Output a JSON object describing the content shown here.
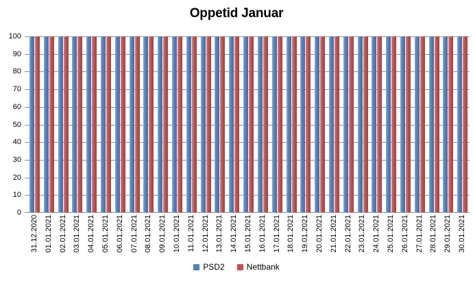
{
  "chart_data": {
    "type": "bar",
    "title": "Oppetid Januar",
    "categories": [
      "31.12.2020",
      "01.01.2021",
      "02.01.2021",
      "03.01.2021",
      "04.01.2021",
      "05.01.2021",
      "06.01.2021",
      "07.01.2021",
      "08.01.2021",
      "09.01.2021",
      "10.01.2021",
      "11.01.2021",
      "12.01.2021",
      "13.01.2021",
      "14.01.2021",
      "15.01.2021",
      "16.01.2021",
      "17.01.2021",
      "18.01.2021",
      "19.01.2021",
      "20.01.2021",
      "21.01.2021",
      "22.01.2021",
      "23.01.2021",
      "24.01.2021",
      "25.01.2021",
      "26.01.2021",
      "27.01.2021",
      "28.01.2021",
      "29.01.2021",
      "30.01.2021"
    ],
    "series": [
      {
        "name": "PSD2",
        "color": "#4F81BD",
        "values": [
          100,
          100,
          100,
          100,
          100,
          100,
          100,
          100,
          100,
          100,
          100,
          100,
          100,
          100,
          100,
          100,
          100,
          100,
          100,
          100,
          100,
          100,
          100,
          100,
          100,
          100,
          100,
          100,
          100,
          100,
          100
        ]
      },
      {
        "name": "Nettbank",
        "color": "#C0504D",
        "values": [
          100,
          100,
          100,
          100,
          100,
          100,
          100,
          100,
          100,
          100,
          100,
          100,
          100,
          100,
          100,
          100,
          100,
          100,
          100,
          100,
          100,
          100,
          100,
          100,
          100,
          100,
          100,
          100,
          100,
          100,
          100
        ]
      }
    ],
    "xlabel": "",
    "ylabel": "",
    "ylim": [
      0,
      100
    ],
    "yticks": [
      0,
      10,
      20,
      30,
      40,
      50,
      60,
      70,
      80,
      90,
      100
    ],
    "grid": true,
    "legend_position": "bottom-center"
  },
  "colors": {
    "background": "#FFFFFF",
    "gridline": "#8C8C8C",
    "axis_line": "#7F7F7F",
    "text": "#000000"
  }
}
